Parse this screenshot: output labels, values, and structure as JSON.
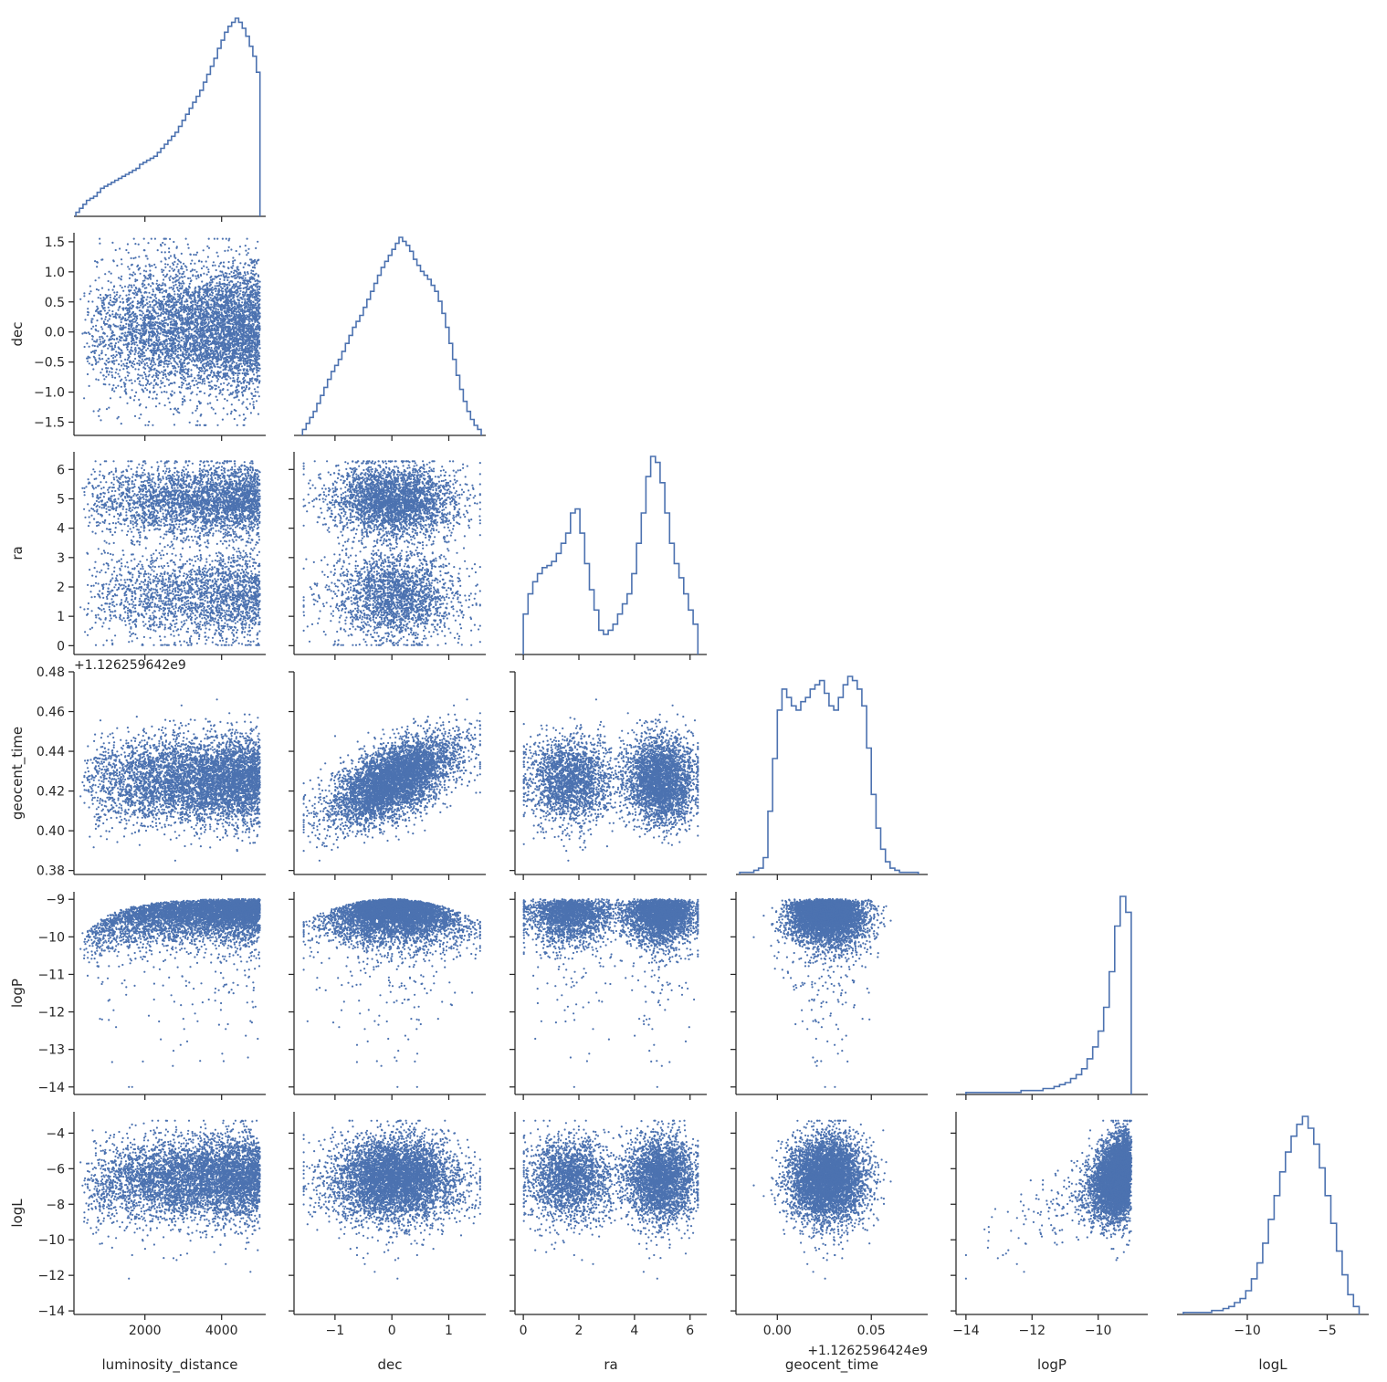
{
  "figure": {
    "type": "pairplot-corner",
    "point_color": "#4c72b0",
    "line_color": "#4c72b0",
    "axis_color": "#262626"
  },
  "chart_data": {
    "type": "scatter",
    "variables": [
      {
        "name": "luminosity_distance",
        "range": [
          150,
          5150
        ],
        "ticks": [
          2000,
          4000
        ],
        "tick_labels": [
          "2000",
          "4000"
        ],
        "offset_text": ""
      },
      {
        "name": "dec",
        "range": [
          -1.72,
          1.65
        ],
        "ticks": [
          -1.5,
          -1.0,
          -0.5,
          0.0,
          0.5,
          1.0,
          1.5
        ],
        "tick_labels": [
          "−1.5",
          "−1.0",
          "−0.5",
          "0.0",
          "0.5",
          "1.0",
          "1.5"
        ],
        "x_ticks": [
          -1,
          0,
          1
        ],
        "x_tick_labels": [
          "−1",
          "0",
          "1"
        ],
        "offset_text": ""
      },
      {
        "name": "ra",
        "range": [
          -0.3,
          6.6
        ],
        "ticks": [
          0,
          1,
          2,
          3,
          4,
          5,
          6
        ],
        "tick_labels": [
          "0",
          "1",
          "2",
          "3",
          "4",
          "5",
          "6"
        ],
        "x_ticks": [
          0,
          2,
          4,
          6
        ],
        "x_tick_labels": [
          "0",
          "2",
          "4",
          "6"
        ],
        "offset_text": ""
      },
      {
        "name": "geocent_time",
        "range": [
          0.378,
          0.48
        ],
        "ticks": [
          0.38,
          0.4,
          0.42,
          0.44,
          0.46,
          0.48
        ],
        "tick_labels": [
          "0.38",
          "0.40",
          "0.42",
          "0.44",
          "0.46",
          "0.48"
        ],
        "y_offset_text": "+1.126259642e9",
        "x_ticks": [
          0.0,
          0.05
        ],
        "x_tick_labels": [
          "0.00",
          "0.05"
        ],
        "x_offset_text": "+1.1262596424e9",
        "x_range": [
          -0.022,
          0.08
        ]
      },
      {
        "name": "logP",
        "range": [
          -14.2,
          -8.8
        ],
        "ticks": [
          -14,
          -13,
          -12,
          -11,
          -10,
          -9
        ],
        "tick_labels": [
          "−14",
          "−13",
          "−12",
          "−11",
          "−10",
          "−9"
        ],
        "x_ticks": [
          -14,
          -12,
          -10
        ],
        "x_tick_labels": [
          "−14",
          "−12",
          "−10"
        ],
        "x_range": [
          -14.3,
          -8.5
        ],
        "offset_text": ""
      },
      {
        "name": "logL",
        "range": [
          -14.2,
          -2.8
        ],
        "ticks": [
          -14,
          -12,
          -10,
          -8,
          -6,
          -4
        ],
        "tick_labels": [
          "−14",
          "−12",
          "−10",
          "−8",
          "−6",
          "−4"
        ],
        "x_ticks": [
          -10,
          -5
        ],
        "x_tick_labels": [
          "−10",
          "−5"
        ],
        "x_range": [
          -14.4,
          -2.4
        ],
        "offset_text": ""
      }
    ],
    "histograms": [
      {
        "variable": "luminosity_distance",
        "x_start": 200,
        "x_end": 5000,
        "counts": [
          2,
          4,
          6,
          8,
          9,
          10,
          12,
          14,
          15,
          16,
          17,
          18,
          19,
          20,
          21,
          22,
          23,
          24,
          26,
          27,
          28,
          29,
          30,
          32,
          34,
          36,
          38,
          40,
          42,
          45,
          48,
          51,
          54,
          57,
          60,
          63,
          67,
          71,
          75,
          79,
          84,
          88,
          92,
          95,
          97,
          99,
          97,
          94,
          90,
          85,
          80,
          72
        ]
      },
      {
        "variable": "dec",
        "x_start": -1.57,
        "x_end": 1.57,
        "counts": [
          3,
          6,
          9,
          12,
          16,
          20,
          24,
          28,
          32,
          35,
          38,
          42,
          46,
          50,
          54,
          57,
          60,
          64,
          68,
          72,
          76,
          80,
          84,
          87,
          90,
          93,
          96,
          99,
          97,
          95,
          92,
          88,
          85,
          82,
          80,
          78,
          75,
          72,
          67,
          61,
          54,
          46,
          38,
          30,
          23,
          17,
          12,
          8,
          5,
          3
        ]
      },
      {
        "variable": "ra",
        "x_start": 0.0,
        "x_end": 6.28,
        "counts": [
          20,
          30,
          36,
          40,
          43,
          44,
          46,
          50,
          55,
          60,
          70,
          72,
          60,
          45,
          32,
          22,
          12,
          10,
          12,
          15,
          20,
          25,
          30,
          40,
          55,
          70,
          88,
          98,
          95,
          85,
          70,
          55,
          45,
          38,
          30,
          22,
          15
        ]
      },
      {
        "variable": "geocent_time",
        "x_start": -0.02,
        "x_end": 0.075,
        "counts": [
          1,
          1,
          1,
          2,
          3,
          8,
          30,
          55,
          78,
          88,
          84,
          80,
          78,
          82,
          84,
          88,
          90,
          92,
          86,
          80,
          78,
          84,
          90,
          94,
          92,
          88,
          80,
          60,
          38,
          22,
          12,
          6,
          3,
          2,
          1,
          1,
          1,
          1
        ]
      },
      {
        "variable": "logP",
        "x_start": -14.0,
        "x_end": -9.0,
        "counts": [
          1,
          1,
          1,
          1,
          1,
          1,
          1,
          1,
          1,
          1,
          2,
          2,
          2,
          2,
          3,
          3,
          4,
          5,
          6,
          8,
          10,
          13,
          18,
          24,
          32,
          44,
          62,
          85,
          100,
          92
        ]
      },
      {
        "variable": "logL",
        "x_start": -14.0,
        "x_end": -3.0,
        "counts": [
          1,
          1,
          1,
          1,
          1,
          2,
          2,
          3,
          4,
          6,
          8,
          12,
          18,
          26,
          36,
          48,
          60,
          72,
          82,
          90,
          96,
          100,
          94,
          86,
          74,
          60,
          46,
          32,
          20,
          10,
          4
        ]
      }
    ]
  }
}
